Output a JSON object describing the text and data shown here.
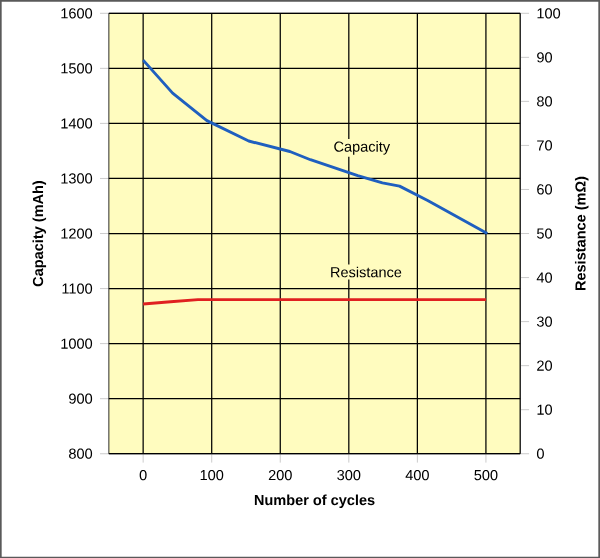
{
  "chart_data": {
    "type": "line",
    "xlabel": "Number of cycles",
    "ylabel": "Capacity (mAh)",
    "y2label": "Resistance (mΩ)",
    "xlim": [
      -50,
      550
    ],
    "xticks": [
      0,
      100,
      200,
      300,
      400,
      500
    ],
    "ylim": [
      800,
      1600
    ],
    "yticks": [
      800,
      900,
      1000,
      1100,
      1200,
      1300,
      1400,
      1500,
      1600
    ],
    "y2lim": [
      0,
      100
    ],
    "y2ticks": [
      0,
      10,
      20,
      30,
      40,
      50,
      60,
      70,
      80,
      90,
      100
    ],
    "grid": true,
    "legend": false,
    "marker": "none",
    "line_style": "solid",
    "series": [
      {
        "name": "Capacity",
        "color": "#1f5fbf",
        "x": [
          0,
          43,
          93,
          154,
          214,
          244,
          313,
          349,
          374,
          415,
          502
        ],
        "values": [
          1515,
          1455,
          1405,
          1368,
          1349,
          1334,
          1305,
          1292,
          1286,
          1260,
          1200
        ]
      },
      {
        "name": "Resistance",
        "color": "#e02020",
        "axis": "y2",
        "x": [
          0,
          40,
          80,
          200,
          300,
          400,
          500
        ],
        "values": [
          34,
          34.5,
          35,
          35,
          35,
          35,
          35
        ]
      }
    ]
  }
}
